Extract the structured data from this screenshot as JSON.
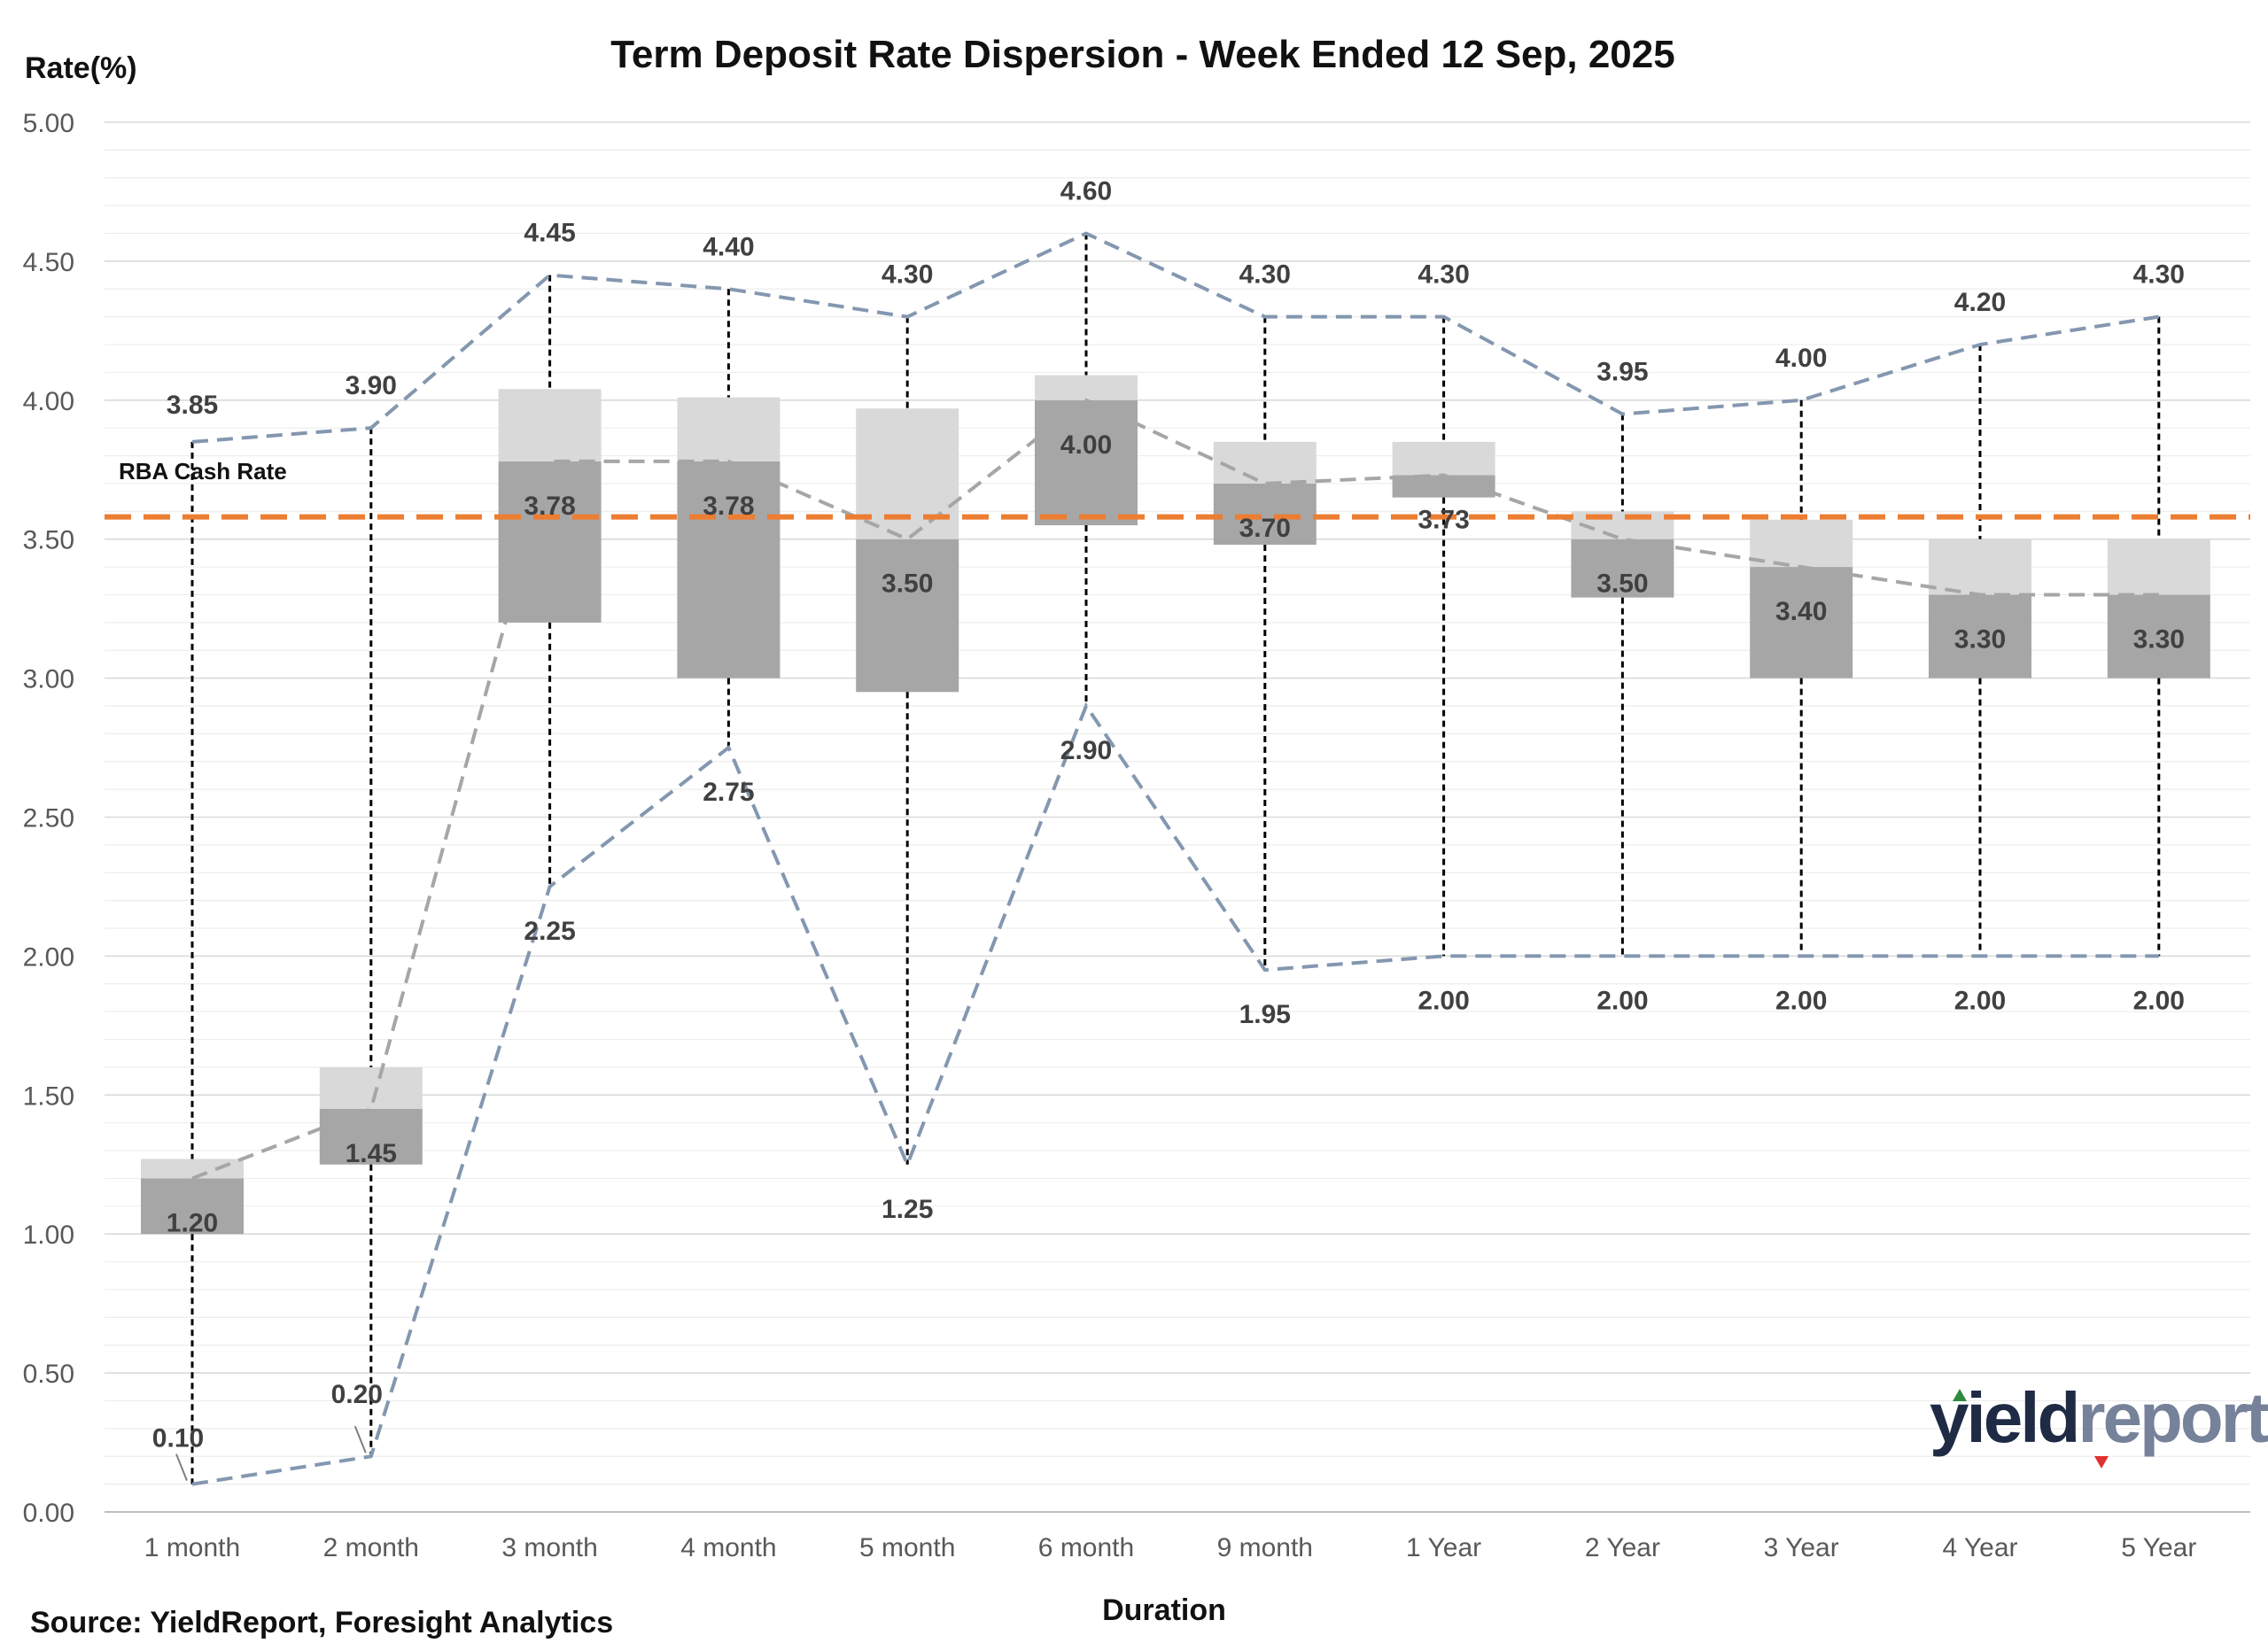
{
  "chart_data": {
    "type": "box",
    "title": "Term Deposit Rate Dispersion - Week Ended 12 Sep, 2025",
    "xlabel": "Duration",
    "ylabel": "Rate(%)",
    "ylim": [
      0,
      5
    ],
    "yticks": [
      "0.00",
      "0.50",
      "1.00",
      "1.50",
      "2.00",
      "2.50",
      "3.00",
      "3.50",
      "4.00",
      "4.50",
      "5.00"
    ],
    "categories": [
      "1 month",
      "2 month",
      "3 month",
      "4 month",
      "5 month",
      "6 month",
      "9 month",
      "1  Year",
      "2  Year",
      "3  Year",
      "4  Year",
      "5  Year"
    ],
    "max": [
      3.85,
      3.9,
      4.45,
      4.4,
      4.3,
      4.6,
      4.3,
      4.3,
      3.95,
      4.0,
      4.2,
      4.3
    ],
    "max_labels": [
      "3.85",
      "3.90",
      "4.45",
      "4.40",
      "4.30",
      "4.60",
      "4.30",
      "4.30",
      "3.95",
      "4.00",
      "4.20",
      "4.30"
    ],
    "min": [
      0.1,
      0.2,
      2.25,
      2.75,
      1.25,
      2.9,
      1.95,
      2.0,
      2.0,
      2.0,
      2.0,
      2.0
    ],
    "min_labels": [
      "0.10",
      "0.20",
      "2.25",
      "2.75",
      "1.25",
      "2.90",
      "1.95",
      "2.00",
      "2.00",
      "2.00",
      "2.00",
      "2.00"
    ],
    "median": [
      1.2,
      1.45,
      3.78,
      3.78,
      3.5,
      4.0,
      3.7,
      3.73,
      3.5,
      3.4,
      3.3,
      3.3
    ],
    "median_labels": [
      "1.20",
      "1.45",
      "3.78",
      "3.78",
      "3.50",
      "4.00",
      "3.70",
      "3.73",
      "3.50",
      "3.40",
      "3.30",
      "3.30"
    ],
    "q1": [
      1.0,
      1.25,
      3.2,
      3.0,
      2.95,
      3.55,
      3.48,
      3.65,
      3.29,
      3.0,
      3.0,
      3.0
    ],
    "q3": [
      1.27,
      1.6,
      4.04,
      4.01,
      3.97,
      4.09,
      3.85,
      3.85,
      3.6,
      3.57,
      3.5,
      3.5
    ],
    "reference_line": {
      "label": "RBA Cash Rate",
      "value": 3.58,
      "color": "#ED7D31"
    },
    "grid": true,
    "colors": {
      "box_lower": "#A6A6A6",
      "box_upper": "#D9D9D9",
      "whisker": "#000000",
      "range_line": "#8497B0",
      "median_line": "#A6A6A6",
      "gridline": "#EDEDED"
    }
  },
  "source": "Source: YieldReport, Foresight Analytics",
  "logo": {
    "text_dark": "yield",
    "text_light": "report",
    "color_dark": "#1F2A44",
    "color_light": "#76819A",
    "arrow_up": "#2E8B3D",
    "arrow_down": "#E03030"
  }
}
